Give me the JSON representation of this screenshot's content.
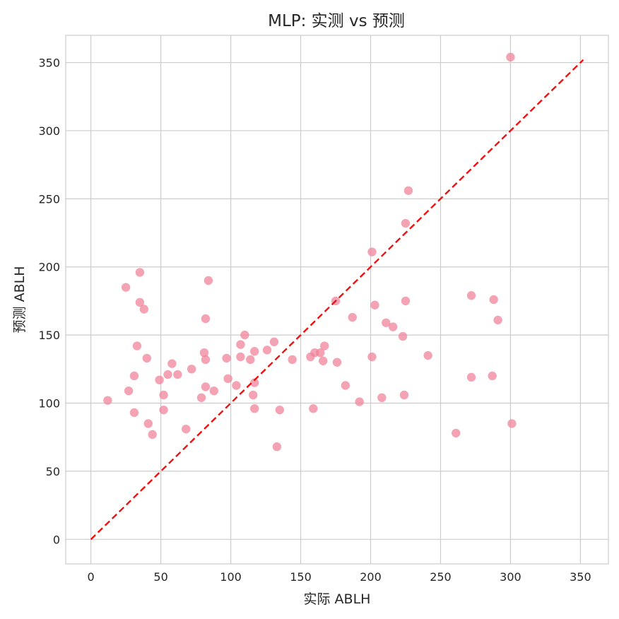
{
  "chart_data": {
    "type": "scatter",
    "title": "MLP: 实测 vs 预测",
    "xlabel": "实际 ABLH",
    "ylabel": "预测 ABLH",
    "xlim": [
      -18,
      370
    ],
    "ylim": [
      -18,
      370
    ],
    "xticks": [
      0,
      50,
      100,
      150,
      200,
      250,
      300,
      350
    ],
    "yticks": [
      0,
      50,
      100,
      150,
      200,
      250,
      300,
      350
    ],
    "grid": true,
    "point_color": "#f07f98",
    "reference_line": {
      "from": [
        0,
        0
      ],
      "to": [
        352,
        352
      ],
      "color": "#ee1111",
      "style": "dashed"
    },
    "points": [
      {
        "x": 12,
        "y": 102
      },
      {
        "x": 25,
        "y": 185
      },
      {
        "x": 27,
        "y": 109
      },
      {
        "x": 31,
        "y": 120
      },
      {
        "x": 31,
        "y": 93
      },
      {
        "x": 33,
        "y": 142
      },
      {
        "x": 35,
        "y": 196
      },
      {
        "x": 35,
        "y": 174
      },
      {
        "x": 38,
        "y": 169
      },
      {
        "x": 40,
        "y": 133
      },
      {
        "x": 41,
        "y": 85
      },
      {
        "x": 44,
        "y": 77
      },
      {
        "x": 49,
        "y": 117
      },
      {
        "x": 52,
        "y": 106
      },
      {
        "x": 52,
        "y": 95
      },
      {
        "x": 55,
        "y": 121
      },
      {
        "x": 58,
        "y": 129
      },
      {
        "x": 62,
        "y": 121
      },
      {
        "x": 68,
        "y": 81
      },
      {
        "x": 72,
        "y": 125
      },
      {
        "x": 79,
        "y": 104
      },
      {
        "x": 81,
        "y": 137
      },
      {
        "x": 82,
        "y": 162
      },
      {
        "x": 82,
        "y": 132
      },
      {
        "x": 82,
        "y": 112
      },
      {
        "x": 84,
        "y": 190
      },
      {
        "x": 88,
        "y": 109
      },
      {
        "x": 97,
        "y": 133
      },
      {
        "x": 98,
        "y": 118
      },
      {
        "x": 104,
        "y": 113
      },
      {
        "x": 107,
        "y": 143
      },
      {
        "x": 107,
        "y": 134
      },
      {
        "x": 110,
        "y": 150
      },
      {
        "x": 114,
        "y": 132
      },
      {
        "x": 116,
        "y": 106
      },
      {
        "x": 117,
        "y": 138
      },
      {
        "x": 117,
        "y": 115
      },
      {
        "x": 117,
        "y": 96
      },
      {
        "x": 126,
        "y": 139
      },
      {
        "x": 131,
        "y": 145
      },
      {
        "x": 133,
        "y": 68
      },
      {
        "x": 135,
        "y": 95
      },
      {
        "x": 144,
        "y": 132
      },
      {
        "x": 157,
        "y": 134
      },
      {
        "x": 159,
        "y": 96
      },
      {
        "x": 160,
        "y": 137
      },
      {
        "x": 164,
        "y": 137
      },
      {
        "x": 166,
        "y": 131
      },
      {
        "x": 167,
        "y": 142
      },
      {
        "x": 175,
        "y": 175
      },
      {
        "x": 176,
        "y": 130
      },
      {
        "x": 182,
        "y": 113
      },
      {
        "x": 187,
        "y": 163
      },
      {
        "x": 192,
        "y": 101
      },
      {
        "x": 201,
        "y": 134
      },
      {
        "x": 201,
        "y": 211
      },
      {
        "x": 203,
        "y": 172
      },
      {
        "x": 208,
        "y": 104
      },
      {
        "x": 211,
        "y": 159
      },
      {
        "x": 216,
        "y": 156
      },
      {
        "x": 223,
        "y": 149
      },
      {
        "x": 224,
        "y": 106
      },
      {
        "x": 225,
        "y": 175
      },
      {
        "x": 225,
        "y": 232
      },
      {
        "x": 227,
        "y": 256
      },
      {
        "x": 241,
        "y": 135
      },
      {
        "x": 261,
        "y": 78
      },
      {
        "x": 272,
        "y": 179
      },
      {
        "x": 272,
        "y": 119
      },
      {
        "x": 287,
        "y": 120
      },
      {
        "x": 288,
        "y": 176
      },
      {
        "x": 291,
        "y": 161
      },
      {
        "x": 300,
        "y": 354
      },
      {
        "x": 301,
        "y": 85
      }
    ]
  }
}
